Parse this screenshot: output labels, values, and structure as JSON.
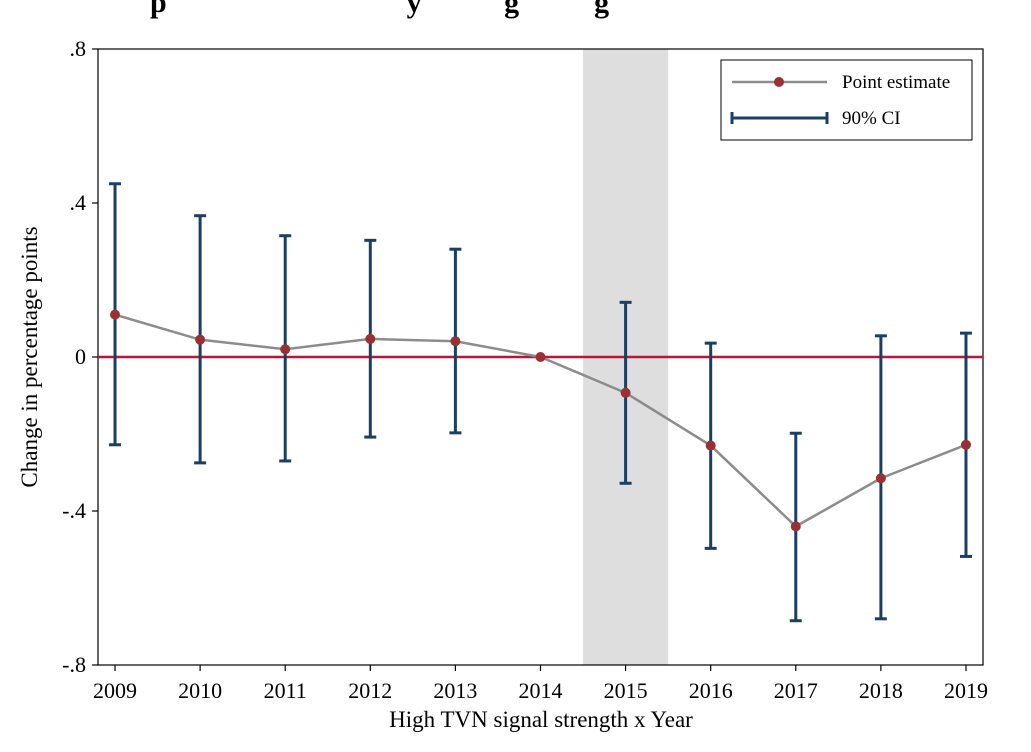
{
  "chart_data": {
    "type": "line",
    "title": "",
    "title_partial_visible": "p                                y           g          g",
    "xlabel": "High TVN signal strength x Year",
    "ylabel": "Change in percentage points",
    "categories": [
      "2009",
      "2010",
      "2011",
      "2012",
      "2013",
      "2014",
      "2015",
      "2016",
      "2017",
      "2018",
      "2019"
    ],
    "x": [
      2009,
      2010,
      2011,
      2012,
      2013,
      2014,
      2015,
      2016,
      2017,
      2018,
      2019
    ],
    "ylim": [
      -0.8,
      0.8
    ],
    "yticks": [
      {
        "value": 0.8,
        "label": ".8"
      },
      {
        "value": 0.4,
        "label": ".4"
      },
      {
        "value": 0.0,
        "label": "0"
      },
      {
        "value": -0.4,
        "label": "-.4"
      },
      {
        "value": -0.8,
        "label": "-.8"
      }
    ],
    "reference_line": {
      "y": 0,
      "color": "#b5163b"
    },
    "shaded_region": {
      "x_from": 2014.5,
      "x_to": 2015.5,
      "color": "#dedede"
    },
    "grid": false,
    "legend_position": "top-right",
    "series": [
      {
        "name": "Point estimate",
        "color": "#8c8c8c",
        "marker_color": "#983034",
        "values": [
          0.11,
          0.045,
          0.02,
          0.047,
          0.041,
          0.0,
          -0.093,
          -0.23,
          -0.44,
          -0.315,
          -0.228
        ]
      },
      {
        "name": "90% CI",
        "color": "#1a3f62",
        "lower": [
          -0.228,
          -0.275,
          -0.27,
          -0.208,
          -0.197,
          null,
          -0.328,
          -0.497,
          -0.685,
          -0.68,
          -0.518
        ],
        "upper": [
          0.45,
          0.367,
          0.315,
          0.303,
          0.28,
          null,
          0.142,
          0.036,
          -0.198,
          0.055,
          0.062
        ]
      }
    ]
  }
}
